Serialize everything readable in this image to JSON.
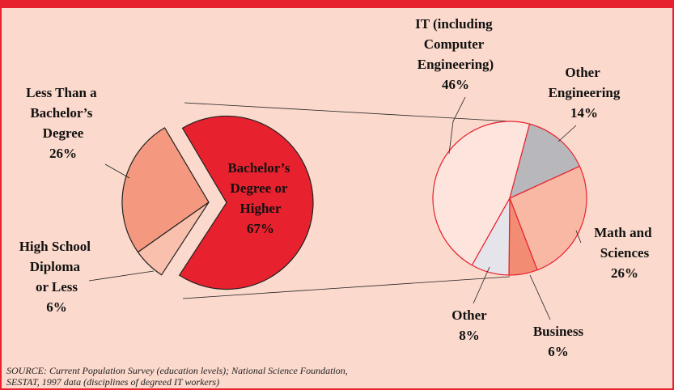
{
  "chart_data": [
    {
      "type": "pie",
      "categories": [
        "Less Than a Bachelor’s Degree",
        "High School Diploma or Less",
        "Bachelor’s Degree or Higher"
      ],
      "values": [
        26,
        6,
        67
      ],
      "value_labels": [
        "26%",
        "6%",
        "67%"
      ],
      "colors": [
        "#f4987f",
        "#f9c0ad",
        "#e8212e"
      ]
    },
    {
      "type": "pie",
      "categories": [
        "IT (including Computer Engineering)",
        "Other Engineering",
        "Math and Sciences",
        "Business",
        "Other"
      ],
      "values": [
        46,
        14,
        26,
        6,
        8
      ],
      "value_labels": [
        "46%",
        "14%",
        "26%",
        "6%",
        "8%"
      ],
      "colors": [
        "#fde4dc",
        "#b8b8bc",
        "#f9b8a3",
        "#f28c73",
        "#e4e4ea"
      ]
    }
  ],
  "source": [
    "SOURCE:  Current Population Survey (education levels); National Science Foundation,",
    "SESTAT, 1997 data (disciplines of degreed IT workers)"
  ]
}
